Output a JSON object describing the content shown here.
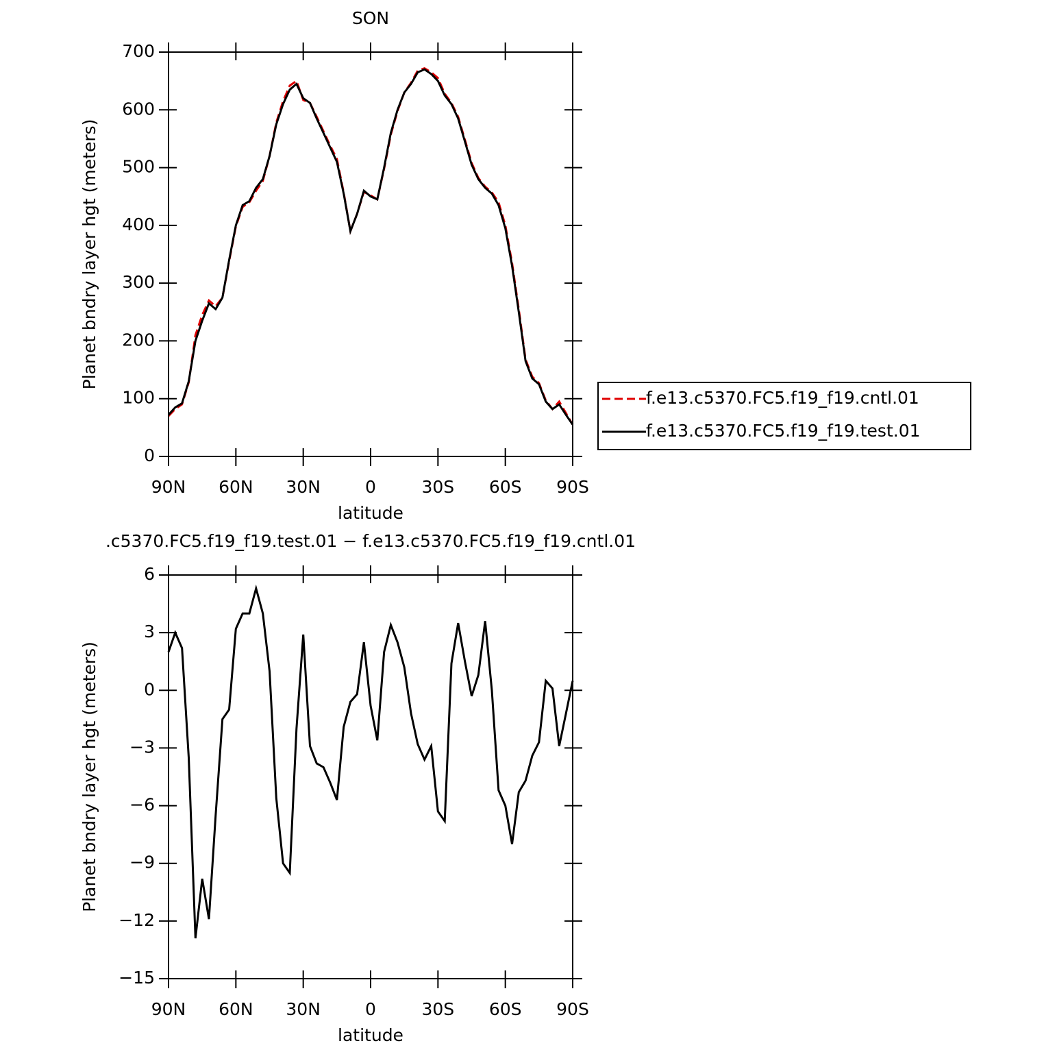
{
  "chart_data": [
    {
      "type": "line",
      "title": "SON",
      "x_label": "latitude",
      "y_label": "Planet bndry layer hgt (meters)",
      "x": [
        90,
        87,
        84,
        81,
        78,
        75,
        72,
        69,
        66,
        63,
        60,
        57,
        54,
        51,
        48,
        45,
        42,
        39,
        36,
        33,
        30,
        27,
        24,
        21,
        18,
        15,
        12,
        9,
        6,
        3,
        0,
        -3,
        -6,
        -9,
        -12,
        -15,
        -18,
        -21,
        -24,
        -27,
        -30,
        -33,
        -36,
        -39,
        -42,
        -45,
        -48,
        -51,
        -54,
        -57,
        -60,
        -63,
        -66,
        -69,
        -72,
        -75,
        -78,
        -81,
        -84,
        -87,
        -90
      ],
      "xlim": [
        90,
        -90
      ],
      "xticks": [
        {
          "value": 90,
          "label": "90N"
        },
        {
          "value": 60,
          "label": "60N"
        },
        {
          "value": 30,
          "label": "30N"
        },
        0,
        {
          "value": -30,
          "label": "30S"
        },
        {
          "value": -60,
          "label": "60S"
        },
        {
          "value": -90,
          "label": "90S"
        }
      ],
      "ylim": [
        0,
        700
      ],
      "yticks": [
        0,
        100,
        200,
        300,
        400,
        500,
        600,
        700
      ],
      "legend": "right",
      "series": [
        {
          "name": "f.e13.c5370.FC5.f19_f19.cntl.01",
          "color": "#e00000",
          "dashed": true,
          "values": [
            70,
            82,
            90,
            128,
            210,
            245,
            270,
            260,
            275,
            338,
            398,
            432,
            440,
            460,
            477,
            520,
            578,
            615,
            642,
            650,
            617,
            612,
            588,
            563,
            538,
            515,
            457,
            390,
            420,
            458,
            452,
            445,
            498,
            557,
            598,
            630,
            647,
            668,
            672,
            665,
            655,
            628,
            612,
            588,
            548,
            508,
            482,
            467,
            457,
            440,
            400,
            335,
            255,
            168,
            138,
            127,
            97,
            82,
            95,
            75,
            55
          ]
        },
        {
          "name": "f.e13.c5370.FC5.f19_f19.test.01",
          "color": "#000000",
          "dashed": false,
          "values": [
            72,
            85,
            92,
            130,
            200,
            235,
            265,
            255,
            275,
            340,
            400,
            435,
            442,
            465,
            480,
            520,
            575,
            610,
            635,
            645,
            620,
            612,
            585,
            560,
            535,
            510,
            455,
            390,
            420,
            460,
            450,
            445,
            500,
            560,
            600,
            630,
            645,
            665,
            670,
            662,
            650,
            625,
            610,
            585,
            545,
            505,
            480,
            465,
            455,
            435,
            395,
            330,
            250,
            165,
            135,
            125,
            95,
            82,
            90,
            72,
            55
          ]
        }
      ]
    },
    {
      "type": "line",
      "title": ".c5370.FC5.f19_f19.test.01 − f.e13.c5370.FC5.f19_f19.cntl.01",
      "x_label": "latitude",
      "y_label": "Planet bndry layer hgt (meters)",
      "x": [
        90,
        87,
        84,
        81,
        78,
        75,
        72,
        69,
        66,
        63,
        60,
        57,
        54,
        51,
        48,
        45,
        42,
        39,
        36,
        33,
        30,
        27,
        24,
        21,
        18,
        15,
        12,
        9,
        6,
        3,
        0,
        -3,
        -6,
        -9,
        -12,
        -15,
        -18,
        -21,
        -24,
        -27,
        -30,
        -33,
        -36,
        -39,
        -42,
        -45,
        -48,
        -51,
        -54,
        -57,
        -60,
        -63,
        -66,
        -69,
        -72,
        -75,
        -78,
        -81,
        -84,
        -87,
        -90
      ],
      "xlim": [
        90,
        -90
      ],
      "xticks": [
        {
          "value": 90,
          "label": "90N"
        },
        {
          "value": 60,
          "label": "60N"
        },
        {
          "value": 30,
          "label": "30N"
        },
        0,
        {
          "value": -30,
          "label": "30S"
        },
        {
          "value": -60,
          "label": "60S"
        },
        {
          "value": -90,
          "label": "90S"
        }
      ],
      "ylim": [
        -15,
        6
      ],
      "yticks": [
        {
          "value": -15,
          "label": "−15"
        },
        {
          "value": -12,
          "label": "−12"
        },
        {
          "value": -9,
          "label": "−9"
        },
        {
          "value": -6,
          "label": "−6"
        },
        {
          "value": -3,
          "label": "−3"
        },
        0,
        3,
        6
      ],
      "series": [
        {
          "color": "#000000",
          "dashed": false,
          "values": [
            2,
            3,
            2.2,
            -3.5,
            -12.9,
            -9.8,
            -11.9,
            -6.5,
            -1.5,
            -1,
            3.2,
            4,
            4,
            5.3,
            4,
            1,
            -5.6,
            -9,
            -9.5,
            -2,
            2.9,
            -2.9,
            -3.8,
            -4,
            -4.8,
            -5.7,
            -1.9,
            -0.6,
            -0.2,
            2.5,
            -0.8,
            -2.6,
            2,
            3.4,
            2.5,
            1.2,
            -1.2,
            -2.8,
            -3.6,
            -2.9,
            -6.3,
            -6.8,
            1.4,
            3.5,
            1.5,
            -0.3,
            0.8,
            3.6,
            0,
            -5.2,
            -6,
            -8,
            -5.3,
            -4.7,
            -3.4,
            -2.7,
            0.5,
            0.1,
            -2.9,
            -1.2,
            0.5
          ]
        }
      ]
    }
  ]
}
